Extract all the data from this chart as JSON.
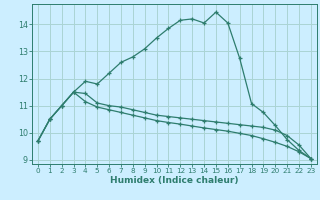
{
  "xlabel": "Humidex (Indice chaleur)",
  "background_color": "#cceeff",
  "grid_color": "#aad4d4",
  "line_color": "#2e7d6e",
  "x_values": [
    0,
    1,
    2,
    3,
    4,
    5,
    6,
    7,
    8,
    9,
    10,
    11,
    12,
    13,
    14,
    15,
    16,
    17,
    18,
    19,
    20,
    21,
    22,
    23
  ],
  "line1": [
    9.7,
    10.5,
    11.0,
    11.5,
    11.9,
    11.8,
    12.2,
    12.6,
    12.8,
    13.1,
    13.5,
    13.85,
    14.15,
    14.2,
    14.05,
    14.45,
    14.05,
    12.75,
    11.08,
    10.75,
    10.27,
    9.75,
    9.35,
    9.05
  ],
  "line2": [
    9.7,
    10.5,
    11.0,
    11.5,
    11.45,
    11.1,
    11.0,
    10.95,
    10.85,
    10.75,
    10.65,
    10.6,
    10.55,
    10.5,
    10.45,
    10.4,
    10.35,
    10.3,
    10.25,
    10.2,
    10.1,
    9.9,
    9.55,
    9.05
  ],
  "line3": [
    9.7,
    10.5,
    11.0,
    11.5,
    11.15,
    10.95,
    10.85,
    10.75,
    10.65,
    10.55,
    10.45,
    10.38,
    10.32,
    10.25,
    10.18,
    10.12,
    10.06,
    9.98,
    9.9,
    9.78,
    9.65,
    9.5,
    9.3,
    9.05
  ],
  "ylim": [
    8.85,
    14.75
  ],
  "xlim": [
    -0.5,
    23.5
  ],
  "yticks": [
    9,
    10,
    11,
    12,
    13,
    14
  ],
  "xticks": [
    0,
    1,
    2,
    3,
    4,
    5,
    6,
    7,
    8,
    9,
    10,
    11,
    12,
    13,
    14,
    15,
    16,
    17,
    18,
    19,
    20,
    21,
    22,
    23
  ]
}
